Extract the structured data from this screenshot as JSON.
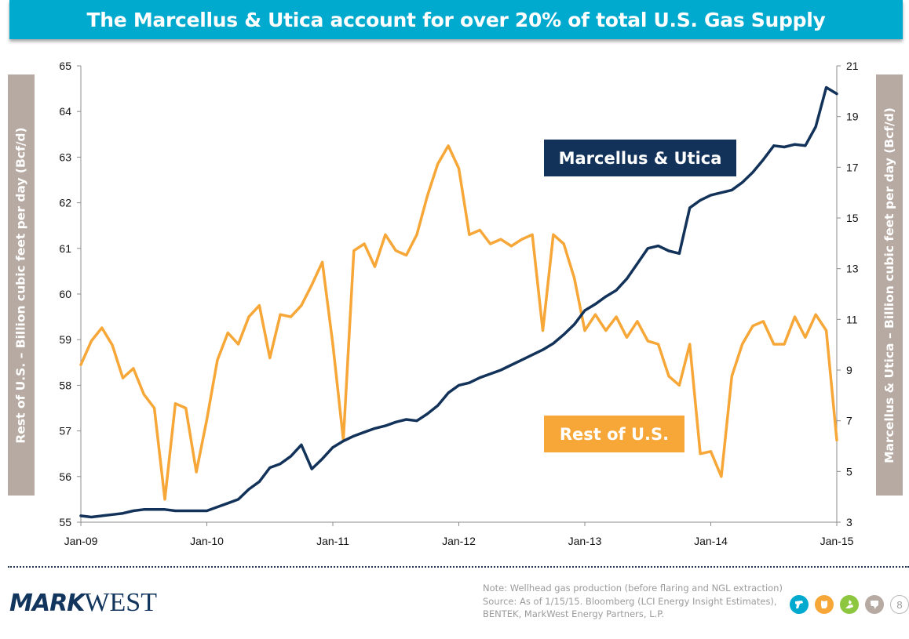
{
  "header": {
    "title": "The Marcellus & Utica account for over 20% of total U.S. Gas Supply"
  },
  "colors": {
    "title_bar": "#00A9CE",
    "marcellus_utica": "#12325A",
    "rest_of_us": "#F6A738",
    "axis_box": "#B7AAA2"
  },
  "chart_data": {
    "type": "line",
    "title": "The Marcellus & Utica account for over 20% of total U.S. Gas Supply",
    "xlabel": "",
    "ylabel": "Rest of U.S. – Billion cubic feet per day (Bcf/d)",
    "y2label": "Marcellus & Utica – Billion cubic feet per day (Bcf/d)",
    "x_ticks": [
      "Jan-09",
      "Jan-10",
      "Jan-11",
      "Jan-12",
      "Jan-13",
      "Jan-14",
      "Jan-15"
    ],
    "xlim": [
      "2009-01",
      "2015-01"
    ],
    "ylim": [
      55,
      65
    ],
    "y_ticks": [
      55,
      56,
      57,
      58,
      59,
      60,
      61,
      62,
      63,
      64,
      65
    ],
    "y2lim": [
      3,
      21
    ],
    "y2_ticks": [
      3,
      5,
      7,
      9,
      11,
      13,
      15,
      17,
      19,
      21
    ],
    "grid": false,
    "legend": "inline labels",
    "x": [
      "2009-01",
      "2009-02",
      "2009-03",
      "2009-04",
      "2009-05",
      "2009-06",
      "2009-07",
      "2009-08",
      "2009-09",
      "2009-10",
      "2009-11",
      "2009-12",
      "2010-01",
      "2010-02",
      "2010-03",
      "2010-04",
      "2010-05",
      "2010-06",
      "2010-07",
      "2010-08",
      "2010-09",
      "2010-10",
      "2010-11",
      "2010-12",
      "2011-01",
      "2011-02",
      "2011-03",
      "2011-04",
      "2011-05",
      "2011-06",
      "2011-07",
      "2011-08",
      "2011-09",
      "2011-10",
      "2011-11",
      "2011-12",
      "2012-01",
      "2012-02",
      "2012-03",
      "2012-04",
      "2012-05",
      "2012-06",
      "2012-07",
      "2012-08",
      "2012-09",
      "2012-10",
      "2012-11",
      "2012-12",
      "2013-01",
      "2013-02",
      "2013-03",
      "2013-04",
      "2013-05",
      "2013-06",
      "2013-07",
      "2013-08",
      "2013-09",
      "2013-10",
      "2013-11",
      "2013-12",
      "2014-01",
      "2014-02",
      "2014-03",
      "2014-04",
      "2014-05",
      "2014-06",
      "2014-07",
      "2014-08",
      "2014-09",
      "2014-10",
      "2014-11",
      "2014-12",
      "2015-01"
    ],
    "series": [
      {
        "name": "Rest of U.S.",
        "axis": "left",
        "label": "Rest of U.S.",
        "values": [
          58.45,
          58.97,
          59.26,
          58.88,
          58.16,
          58.37,
          57.8,
          57.5,
          55.5,
          57.6,
          57.5,
          56.1,
          57.25,
          58.55,
          59.15,
          58.9,
          59.5,
          59.75,
          58.6,
          59.55,
          59.5,
          59.75,
          60.2,
          60.7,
          58.9,
          56.8,
          60.95,
          61.1,
          60.6,
          61.3,
          60.95,
          60.85,
          61.3,
          62.15,
          62.85,
          63.25,
          62.75,
          61.3,
          61.4,
          61.1,
          61.2,
          61.05,
          61.2,
          61.3,
          59.2,
          61.3,
          61.1,
          60.35,
          59.2,
          59.55,
          59.2,
          59.5,
          59.05,
          59.4,
          58.97,
          58.9,
          58.2,
          58.0,
          58.9,
          56.5,
          56.55,
          56.0,
          58.2,
          58.9,
          59.3,
          59.4,
          58.9,
          58.9,
          59.5,
          59.05,
          59.55,
          59.2,
          56.8
        ]
      },
      {
        "name": "Marcellus & Utica",
        "axis": "right",
        "label": "Marcellus & Utica",
        "values": [
          3.25,
          3.2,
          3.25,
          3.3,
          3.35,
          3.45,
          3.5,
          3.5,
          3.5,
          3.45,
          3.45,
          3.45,
          3.45,
          3.6,
          3.75,
          3.9,
          4.3,
          4.6,
          5.15,
          5.3,
          5.6,
          6.05,
          5.1,
          5.5,
          5.95,
          6.2,
          6.4,
          6.55,
          6.7,
          6.8,
          6.95,
          7.05,
          7.0,
          7.27,
          7.6,
          8.1,
          8.4,
          8.5,
          8.7,
          8.85,
          9.0,
          9.2,
          9.4,
          9.6,
          9.8,
          10.05,
          10.4,
          10.8,
          11.35,
          11.6,
          11.9,
          12.15,
          12.6,
          13.2,
          13.8,
          13.9,
          13.7,
          13.6,
          15.4,
          15.7,
          15.9,
          16.0,
          16.1,
          16.4,
          16.8,
          17.3,
          17.85,
          17.8,
          17.9,
          17.85,
          18.6,
          20.15,
          19.9
        ]
      }
    ]
  },
  "labels": {
    "left_axis": "Rest of U.S. – Billion cubic feet per day (Bcf/d)",
    "right_axis": "Marcellus & Utica – Billion cubic feet per day (Bcf/d)",
    "marcellus_box": "Marcellus & Utica",
    "rest_box": "Rest of U.S."
  },
  "footer": {
    "logo_mark": "MARK",
    "logo_west": "WEST",
    "note_lines": [
      "Note: Wellhead gas production (before flaring and NGL extraction)",
      "Source: As of 1/15/15. Bloomberg (LCI Energy Insight Estimates),",
      "BENTEK, MarkWest Energy Partners, L.P."
    ],
    "state_icons": [
      {
        "name": "pennsylvania-icon",
        "color": "#00A9CE"
      },
      {
        "name": "ohio-icon",
        "color": "#F6A738"
      },
      {
        "name": "michigan-icon",
        "color": "#8DC63F"
      },
      {
        "name": "texas-icon",
        "color": "#B7AAA2"
      }
    ],
    "page_number": "8"
  }
}
